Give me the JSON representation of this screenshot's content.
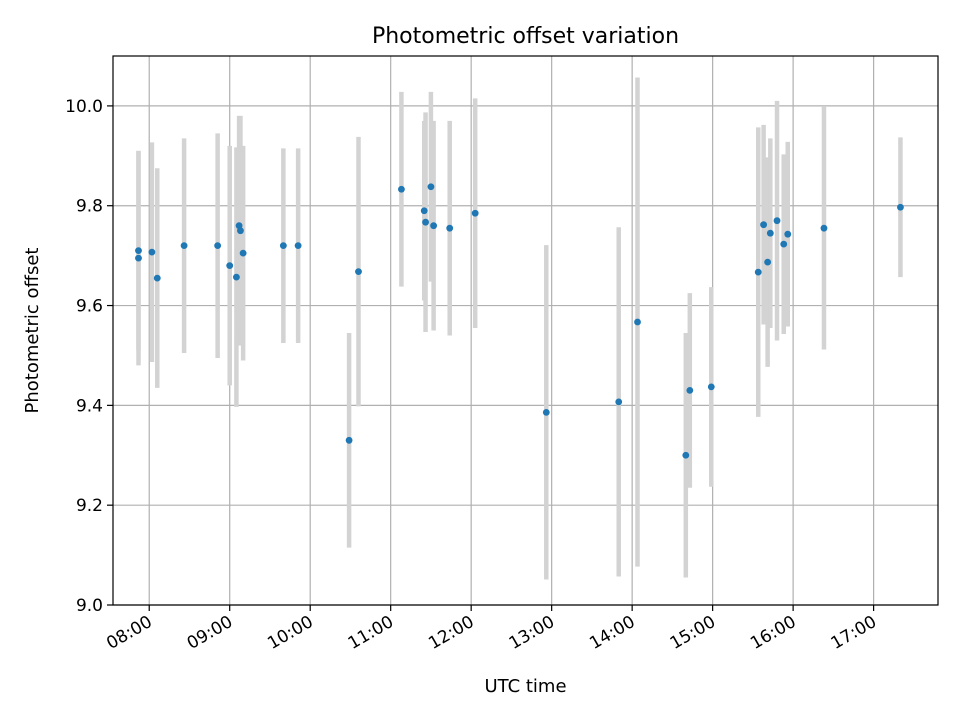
{
  "chart_data": {
    "type": "scatter",
    "title": "Photometric offset variation",
    "xlabel": "UTC time",
    "ylabel": "Photometric offset",
    "grid": true,
    "xlim": [
      "07:33",
      "17:48"
    ],
    "ylim": [
      9.0,
      10.1
    ],
    "x_ticks": [
      "08:00",
      "09:00",
      "10:00",
      "11:00",
      "12:00",
      "13:00",
      "14:00",
      "15:00",
      "16:00",
      "17:00"
    ],
    "y_ticks": [
      "9.0",
      "9.2",
      "9.4",
      "9.6",
      "9.8",
      "10.0"
    ],
    "series": [
      {
        "marker_color": "#1f77b4",
        "errorbar_color": "#d3d3d3",
        "points": [
          {
            "x": "07:52",
            "y": 9.695,
            "yerr": 0.215
          },
          {
            "x": "07:52",
            "y": 9.71,
            "yerr": 0.2
          },
          {
            "x": "08:02",
            "y": 9.707,
            "yerr": 0.22
          },
          {
            "x": "08:06",
            "y": 9.655,
            "yerr": 0.22
          },
          {
            "x": "08:26",
            "y": 9.72,
            "yerr": 0.215
          },
          {
            "x": "08:51",
            "y": 9.72,
            "yerr": 0.225
          },
          {
            "x": "09:00",
            "y": 9.68,
            "yerr": 0.24
          },
          {
            "x": "09:05",
            "y": 9.657,
            "yerr": 0.26
          },
          {
            "x": "09:07",
            "y": 9.76,
            "yerr": 0.22
          },
          {
            "x": "09:08",
            "y": 9.75,
            "yerr": 0.23
          },
          {
            "x": "09:10",
            "y": 9.705,
            "yerr": 0.215
          },
          {
            "x": "09:40",
            "y": 9.72,
            "yerr": 0.195
          },
          {
            "x": "09:51",
            "y": 9.72,
            "yerr": 0.195
          },
          {
            "x": "10:29",
            "y": 9.33,
            "yerr": 0.215
          },
          {
            "x": "10:36",
            "y": 9.668,
            "yerr": 0.27
          },
          {
            "x": "11:08",
            "y": 9.833,
            "yerr": 0.195
          },
          {
            "x": "11:25",
            "y": 9.79,
            "yerr": 0.18
          },
          {
            "x": "11:26",
            "y": 9.767,
            "yerr": 0.22
          },
          {
            "x": "11:30",
            "y": 9.838,
            "yerr": 0.19
          },
          {
            "x": "11:32",
            "y": 9.76,
            "yerr": 0.21
          },
          {
            "x": "11:44",
            "y": 9.755,
            "yerr": 0.215
          },
          {
            "x": "12:03",
            "y": 9.785,
            "yerr": 0.23
          },
          {
            "x": "12:56",
            "y": 9.386,
            "yerr": 0.335
          },
          {
            "x": "13:50",
            "y": 9.407,
            "yerr": 0.35
          },
          {
            "x": "14:04",
            "y": 9.567,
            "yerr": 0.49
          },
          {
            "x": "14:40",
            "y": 9.3,
            "yerr": 0.245
          },
          {
            "x": "14:43",
            "y": 9.43,
            "yerr": 0.195
          },
          {
            "x": "14:59",
            "y": 9.437,
            "yerr": 0.2
          },
          {
            "x": "15:34",
            "y": 9.667,
            "yerr": 0.29
          },
          {
            "x": "15:38",
            "y": 9.762,
            "yerr": 0.2
          },
          {
            "x": "15:41",
            "y": 9.687,
            "yerr": 0.21
          },
          {
            "x": "15:43",
            "y": 9.745,
            "yerr": 0.19
          },
          {
            "x": "15:48",
            "y": 9.77,
            "yerr": 0.24
          },
          {
            "x": "15:53",
            "y": 9.723,
            "yerr": 0.18
          },
          {
            "x": "15:56",
            "y": 9.743,
            "yerr": 0.185
          },
          {
            "x": "16:23",
            "y": 9.755,
            "yerr": 0.243
          },
          {
            "x": "17:20",
            "y": 9.797,
            "yerr": 0.14
          }
        ]
      }
    ]
  }
}
